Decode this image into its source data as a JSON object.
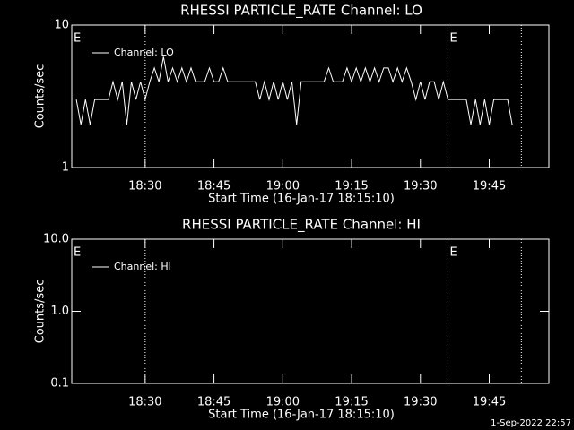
{
  "chart_data": [
    {
      "type": "line",
      "title": "RHESSI PARTICLE_RATE Channel: LO",
      "xlabel": "Start Time (16-Jan-17 18:15:10)",
      "ylabel": "Counts/sec",
      "ylog": true,
      "ylim": [
        1,
        10
      ],
      "yticks": [
        1,
        10
      ],
      "xlim": [
        "18:14",
        "19:58"
      ],
      "xticks": [
        "18:30",
        "18:45",
        "19:00",
        "19:15",
        "19:30",
        "19:45"
      ],
      "vlines": [
        "18:30",
        "19:36",
        "19:52"
      ],
      "annotations": [
        {
          "text": "E",
          "x": "18:14"
        },
        {
          "text": "E",
          "x": "19:36"
        }
      ],
      "x": [
        "18:15",
        "18:16",
        "18:17",
        "18:18",
        "18:19",
        "18:20",
        "18:21",
        "18:22",
        "18:23",
        "18:24",
        "18:25",
        "18:26",
        "18:27",
        "18:28",
        "18:29",
        "18:30",
        "18:31",
        "18:32",
        "18:33",
        "18:34",
        "18:35",
        "18:36",
        "18:37",
        "18:38",
        "18:39",
        "18:40",
        "18:41",
        "18:42",
        "18:43",
        "18:44",
        "18:45",
        "18:46",
        "18:47",
        "18:48",
        "18:49",
        "18:50",
        "18:51",
        "18:52",
        "18:53",
        "18:54",
        "18:55",
        "18:56",
        "18:57",
        "18:58",
        "18:59",
        "19:00",
        "19:01",
        "19:02",
        "19:03",
        "19:04",
        "19:05",
        "19:06",
        "19:07",
        "19:08",
        "19:09",
        "19:10",
        "19:11",
        "19:12",
        "19:13",
        "19:14",
        "19:15",
        "19:16",
        "19:17",
        "19:18",
        "19:19",
        "19:20",
        "19:21",
        "19:22",
        "19:23",
        "19:24",
        "19:25",
        "19:26",
        "19:27",
        "19:28",
        "19:29",
        "19:30",
        "19:31",
        "19:32",
        "19:33",
        "19:34",
        "19:35",
        "19:36",
        "19:37",
        "19:38",
        "19:39",
        "19:40",
        "19:41",
        "19:42",
        "19:43",
        "19:44",
        "19:45",
        "19:46",
        "19:47",
        "19:48",
        "19:49",
        "19:50"
      ],
      "series": [
        {
          "name": "Channel: LO",
          "color": "#ffffff",
          "values": [
            3,
            2,
            3,
            2,
            3,
            3,
            3,
            3,
            4,
            3,
            4,
            2,
            4,
            3,
            4,
            3,
            4,
            5,
            4,
            6,
            4,
            5,
            4,
            5,
            4,
            5,
            4,
            4,
            4,
            5,
            4,
            4,
            5,
            4,
            4,
            4,
            4,
            4,
            4,
            4,
            3,
            4,
            3,
            4,
            3,
            4,
            3,
            4,
            2,
            4,
            4,
            4,
            4,
            4,
            4,
            5,
            4,
            4,
            4,
            5,
            4,
            5,
            4,
            5,
            4,
            5,
            4,
            5,
            5,
            4,
            5,
            4,
            5,
            4,
            3,
            4,
            3,
            4,
            4,
            3,
            4,
            3,
            3,
            3,
            3,
            3,
            2,
            3,
            2,
            3,
            2,
            3,
            3,
            3,
            3,
            2
          ]
        }
      ]
    },
    {
      "type": "line",
      "title": "RHESSI PARTICLE_RATE Channel: HI",
      "xlabel": "Start Time (16-Jan-17 18:15:10)",
      "ylabel": "Counts/sec",
      "ylog": true,
      "ylim": [
        0.1,
        10
      ],
      "yticks": [
        {
          "value": 0.1,
          "label": "0.1"
        },
        {
          "value": 1,
          "label": "1.0"
        },
        {
          "value": 10,
          "label": "10.0"
        }
      ],
      "xlim": [
        "18:14",
        "19:58"
      ],
      "xticks": [
        "18:30",
        "18:45",
        "19:00",
        "19:15",
        "19:30",
        "19:45"
      ],
      "vlines": [
        "18:30",
        "19:36",
        "19:52"
      ],
      "annotations": [
        {
          "text": "E",
          "x": "18:14"
        },
        {
          "text": "E",
          "x": "19:36"
        }
      ],
      "x": [],
      "series": [
        {
          "name": "Channel: HI",
          "color": "#ffffff",
          "values": []
        }
      ]
    }
  ],
  "footer": "1-Sep-2022 22:57"
}
